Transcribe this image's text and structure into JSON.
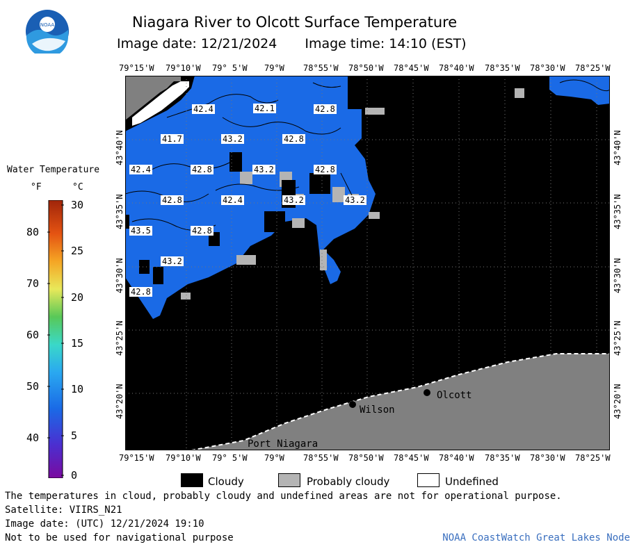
{
  "header": {
    "title": "Niagara River to Olcott Surface Temperature",
    "image_date_label": "Image date: 12/21/2024",
    "image_time_label": "Image time: 14:10 (EST)"
  },
  "logo": {
    "text": "NOAA"
  },
  "map": {
    "lon_labels": [
      "79°15'W",
      "79°10'W",
      "79° 5'W",
      "79°W",
      "78°55'W",
      "78°50'W",
      "78°45'W",
      "78°40'W",
      "78°35'W",
      "78°30'W",
      "78°25'W"
    ],
    "lat_labels": [
      "43°40'N",
      "43°35'N",
      "43°30'N",
      "43°25'N",
      "43°20'N"
    ],
    "places": [
      {
        "name": "Olcott"
      },
      {
        "name": "Wilson"
      },
      {
        "name": "Port Niagara"
      }
    ],
    "temperature_labels": [
      "42.4",
      "42.1",
      "42.8",
      "41.7",
      "43.2",
      "42.8",
      "42.4",
      "42.8",
      "43.2",
      "42.8",
      "42.8",
      "42.4",
      "43.2",
      "43.2",
      "43.5",
      "42.8",
      "43.2",
      "42.8"
    ]
  },
  "legend": {
    "title": "Water Temperature",
    "unit_f": "°F",
    "unit_c": "°C",
    "f_ticks": [
      "80",
      "70",
      "60",
      "50",
      "40"
    ],
    "c_ticks": [
      "30",
      "25",
      "20",
      "15",
      "10",
      "5",
      "0"
    ]
  },
  "key": {
    "cloudy": "Cloudy",
    "probably_cloudy": "Probably cloudy",
    "undefined": "Undefined",
    "colors": {
      "cloudy": "#000000",
      "probably_cloudy": "#b4b4b4",
      "undefined": "#ffffff"
    }
  },
  "notes": {
    "disclaimer": "The temperatures in cloud, probably cloudy and undefined areas are not for operational purpose.",
    "satellite": "Satellite: VIIRS_N21",
    "utc_date": "Image date: (UTC) 12/21/2024  19:10",
    "nav": "Not to be used for navigational purpose",
    "credit": "NOAA CoastWatch Great Lakes Node"
  }
}
